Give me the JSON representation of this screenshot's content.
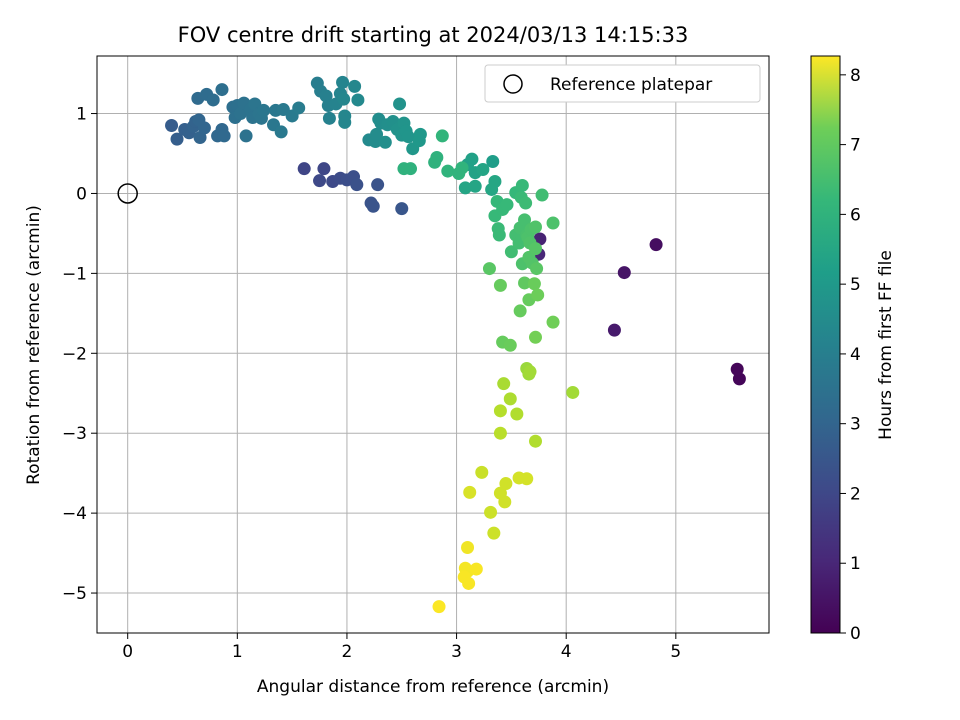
{
  "chart_data": {
    "type": "scatter",
    "title": "FOV centre drift starting at 2024/03/13 14:15:33",
    "xlabel": "Angular distance from reference (arcmin)",
    "ylabel": "Rotation from reference (arcmin)",
    "xlim": [
      -0.28,
      5.85
    ],
    "ylim": [
      -5.5,
      1.72
    ],
    "xticks": [
      0,
      1,
      2,
      3,
      4,
      5
    ],
    "yticks": [
      1,
      0,
      -1,
      -2,
      -3,
      -4,
      -5
    ],
    "grid": true,
    "legend": {
      "position": "top-right",
      "entries": [
        "Reference platepar"
      ]
    },
    "reference_point": {
      "x": 0,
      "y": 0
    },
    "colorbar": {
      "label": "Hours from first FF file",
      "range": [
        0,
        8.27
      ],
      "ticks": [
        0,
        1,
        2,
        3,
        4,
        5,
        6,
        7,
        8
      ],
      "colormap": "viridis"
    },
    "points": [
      [
        5.58,
        -2.32,
        0.1
      ],
      [
        5.56,
        -2.2,
        0.12
      ],
      [
        4.82,
        -0.64,
        0.3
      ],
      [
        4.53,
        -0.99,
        0.45
      ],
      [
        4.44,
        -1.71,
        0.6
      ],
      [
        3.76,
        -0.57,
        0.8
      ],
      [
        3.75,
        -0.76,
        0.9
      ],
      [
        1.61,
        0.31,
        1.7
      ],
      [
        1.79,
        0.31,
        1.75
      ],
      [
        1.75,
        0.16,
        1.8
      ],
      [
        1.87,
        0.15,
        1.85
      ],
      [
        1.94,
        0.19,
        1.9
      ],
      [
        2.0,
        0.17,
        1.95
      ],
      [
        2.06,
        0.21,
        2.0
      ],
      [
        2.09,
        0.11,
        2.05
      ],
      [
        2.28,
        0.11,
        2.1
      ],
      [
        2.22,
        -0.12,
        2.1
      ],
      [
        2.24,
        -0.16,
        2.15
      ],
      [
        2.5,
        -0.19,
        2.2
      ],
      [
        0.4,
        0.85,
        2.4
      ],
      [
        0.45,
        0.68,
        2.45
      ],
      [
        0.52,
        0.8,
        2.5
      ],
      [
        0.56,
        0.76,
        2.55
      ],
      [
        0.6,
        0.84,
        2.6
      ],
      [
        0.62,
        0.9,
        2.6
      ],
      [
        0.66,
        0.7,
        2.65
      ],
      [
        0.7,
        0.82,
        2.7
      ],
      [
        0.65,
        0.92,
        2.7
      ],
      [
        0.82,
        0.72,
        2.75
      ],
      [
        0.86,
        0.8,
        2.75
      ],
      [
        0.88,
        0.72,
        2.8
      ],
      [
        0.64,
        1.19,
        2.85
      ],
      [
        0.72,
        1.24,
        2.9
      ],
      [
        0.78,
        1.17,
        2.95
      ],
      [
        0.86,
        1.3,
        3.0
      ],
      [
        0.96,
        1.08,
        3.0
      ],
      [
        0.98,
        0.95,
        3.05
      ],
      [
        1.0,
        1.1,
        3.05
      ],
      [
        1.03,
        1.0,
        3.1
      ],
      [
        1.06,
        1.13,
        3.1
      ],
      [
        1.08,
        0.72,
        3.1
      ],
      [
        1.12,
        1.05,
        3.15
      ],
      [
        1.14,
        0.95,
        3.15
      ],
      [
        1.16,
        1.12,
        3.2
      ],
      [
        1.2,
        1.0,
        3.2
      ],
      [
        1.22,
        0.94,
        3.2
      ],
      [
        1.24,
        1.04,
        3.25
      ],
      [
        1.33,
        0.86,
        3.3
      ],
      [
        1.4,
        0.77,
        3.35
      ],
      [
        1.35,
        1.04,
        3.3
      ],
      [
        1.42,
        1.05,
        3.35
      ],
      [
        1.5,
        0.97,
        3.4
      ],
      [
        1.56,
        1.07,
        3.45
      ],
      [
        1.73,
        1.38,
        3.5
      ],
      [
        1.76,
        1.28,
        3.55
      ],
      [
        1.81,
        1.22,
        3.6
      ],
      [
        1.83,
        1.1,
        3.6
      ],
      [
        1.84,
        0.94,
        3.65
      ],
      [
        1.9,
        1.12,
        3.7
      ],
      [
        1.96,
        1.39,
        3.75
      ],
      [
        1.94,
        1.25,
        3.75
      ],
      [
        1.97,
        1.18,
        3.8
      ],
      [
        1.98,
        0.97,
        3.8
      ],
      [
        1.98,
        0.89,
        3.8
      ],
      [
        2.07,
        1.34,
        3.85
      ],
      [
        2.1,
        1.17,
        3.9
      ],
      [
        2.2,
        0.67,
        3.95
      ],
      [
        2.24,
        0.67,
        3.95
      ],
      [
        2.26,
        0.65,
        4.0
      ],
      [
        2.27,
        0.74,
        4.0
      ],
      [
        2.29,
        0.93,
        4.05
      ],
      [
        2.31,
        0.88,
        4.05
      ],
      [
        2.35,
        0.64,
        4.1
      ],
      [
        2.37,
        0.86,
        4.1
      ],
      [
        2.42,
        0.9,
        4.15
      ],
      [
        2.46,
        0.8,
        4.2
      ],
      [
        2.48,
        1.12,
        4.2
      ],
      [
        2.5,
        0.73,
        4.25
      ],
      [
        2.52,
        0.88,
        4.25
      ],
      [
        2.54,
        0.78,
        4.3
      ],
      [
        2.56,
        0.71,
        4.3
      ],
      [
        2.6,
        0.56,
        4.35
      ],
      [
        2.66,
        0.66,
        4.4
      ],
      [
        2.67,
        0.74,
        4.4
      ],
      [
        3.33,
        0.4,
        4.6
      ],
      [
        3.1,
        0.36,
        4.7
      ],
      [
        3.14,
        0.43,
        4.7
      ],
      [
        3.17,
        0.26,
        4.75
      ],
      [
        3.24,
        0.3,
        4.8
      ],
      [
        3.08,
        0.07,
        4.85
      ],
      [
        3.17,
        0.09,
        4.85
      ],
      [
        3.32,
        0.05,
        4.9
      ],
      [
        3.35,
        0.15,
        4.9
      ],
      [
        2.52,
        0.31,
        5.3
      ],
      [
        2.58,
        0.31,
        5.3
      ],
      [
        2.8,
        0.39,
        5.3
      ],
      [
        2.82,
        0.45,
        5.3
      ],
      [
        2.92,
        0.28,
        5.35
      ],
      [
        3.02,
        0.25,
        5.35
      ],
      [
        3.05,
        0.32,
        5.35
      ],
      [
        2.87,
        0.72,
        5.4
      ],
      [
        3.37,
        -0.1,
        5.5
      ],
      [
        3.35,
        -0.28,
        5.55
      ],
      [
        3.38,
        -0.44,
        5.6
      ],
      [
        3.39,
        -0.52,
        5.6
      ],
      [
        3.42,
        -0.2,
        5.55
      ],
      [
        3.46,
        -0.14,
        5.55
      ],
      [
        3.5,
        -0.73,
        5.7
      ],
      [
        3.54,
        -0.52,
        5.75
      ],
      [
        3.54,
        0.01,
        5.5
      ],
      [
        3.57,
        -0.62,
        5.75
      ],
      [
        3.58,
        -0.43,
        5.8
      ],
      [
        3.59,
        -0.05,
        5.6
      ],
      [
        3.6,
        -0.88,
        5.9
      ],
      [
        3.6,
        0.1,
        5.55
      ],
      [
        3.62,
        -0.33,
        5.8
      ],
      [
        3.63,
        -0.12,
        5.65
      ],
      [
        3.64,
        -0.52,
        5.85
      ],
      [
        3.65,
        -0.55,
        5.9
      ],
      [
        3.67,
        -0.62,
        5.95
      ],
      [
        3.66,
        -0.8,
        6.0
      ],
      [
        3.68,
        -0.45,
        5.9
      ],
      [
        3.69,
        -0.87,
        6.0
      ],
      [
        3.72,
        -0.42,
        5.95
      ],
      [
        3.72,
        -0.69,
        6.05
      ],
      [
        3.73,
        -0.94,
        6.1
      ],
      [
        3.78,
        -0.02,
        5.7
      ],
      [
        3.88,
        -0.37,
        5.9
      ],
      [
        3.3,
        -0.94,
        6.1
      ],
      [
        3.4,
        -1.15,
        6.3
      ],
      [
        3.42,
        -1.86,
        6.3
      ],
      [
        3.49,
        -1.9,
        6.35
      ],
      [
        3.58,
        -1.47,
        6.3
      ],
      [
        3.62,
        -1.12,
        6.2
      ],
      [
        3.66,
        -1.33,
        6.3
      ],
      [
        3.71,
        -1.13,
        6.35
      ],
      [
        3.74,
        -1.27,
        6.4
      ],
      [
        3.72,
        -1.8,
        6.5
      ],
      [
        3.88,
        -1.61,
        6.45
      ],
      [
        3.64,
        -2.19,
        7.0
      ],
      [
        3.66,
        -2.26,
        7.05
      ],
      [
        3.67,
        -2.23,
        7.1
      ],
      [
        3.43,
        -2.38,
        7.2
      ],
      [
        3.49,
        -2.57,
        7.25
      ],
      [
        3.55,
        -2.76,
        7.3
      ],
      [
        3.72,
        -3.1,
        7.3
      ],
      [
        3.4,
        -2.72,
        7.35
      ],
      [
        3.4,
        -3.0,
        7.4
      ],
      [
        4.06,
        -2.49,
        7.1
      ],
      [
        3.23,
        -3.49,
        7.6
      ],
      [
        3.31,
        -3.99,
        7.65
      ],
      [
        3.34,
        -4.25,
        7.65
      ],
      [
        3.4,
        -3.75,
        7.7
      ],
      [
        3.44,
        -3.86,
        7.7
      ],
      [
        3.45,
        -3.63,
        7.7
      ],
      [
        3.57,
        -3.56,
        7.75
      ],
      [
        3.64,
        -3.57,
        7.75
      ],
      [
        3.12,
        -3.74,
        7.8
      ],
      [
        3.1,
        -4.43,
        8.1
      ],
      [
        3.08,
        -4.69,
        8.15
      ],
      [
        3.1,
        -4.73,
        8.15
      ],
      [
        3.07,
        -4.8,
        8.2
      ],
      [
        3.11,
        -4.88,
        8.2
      ],
      [
        3.18,
        -4.7,
        8.2
      ],
      [
        2.84,
        -5.17,
        8.25
      ]
    ]
  }
}
